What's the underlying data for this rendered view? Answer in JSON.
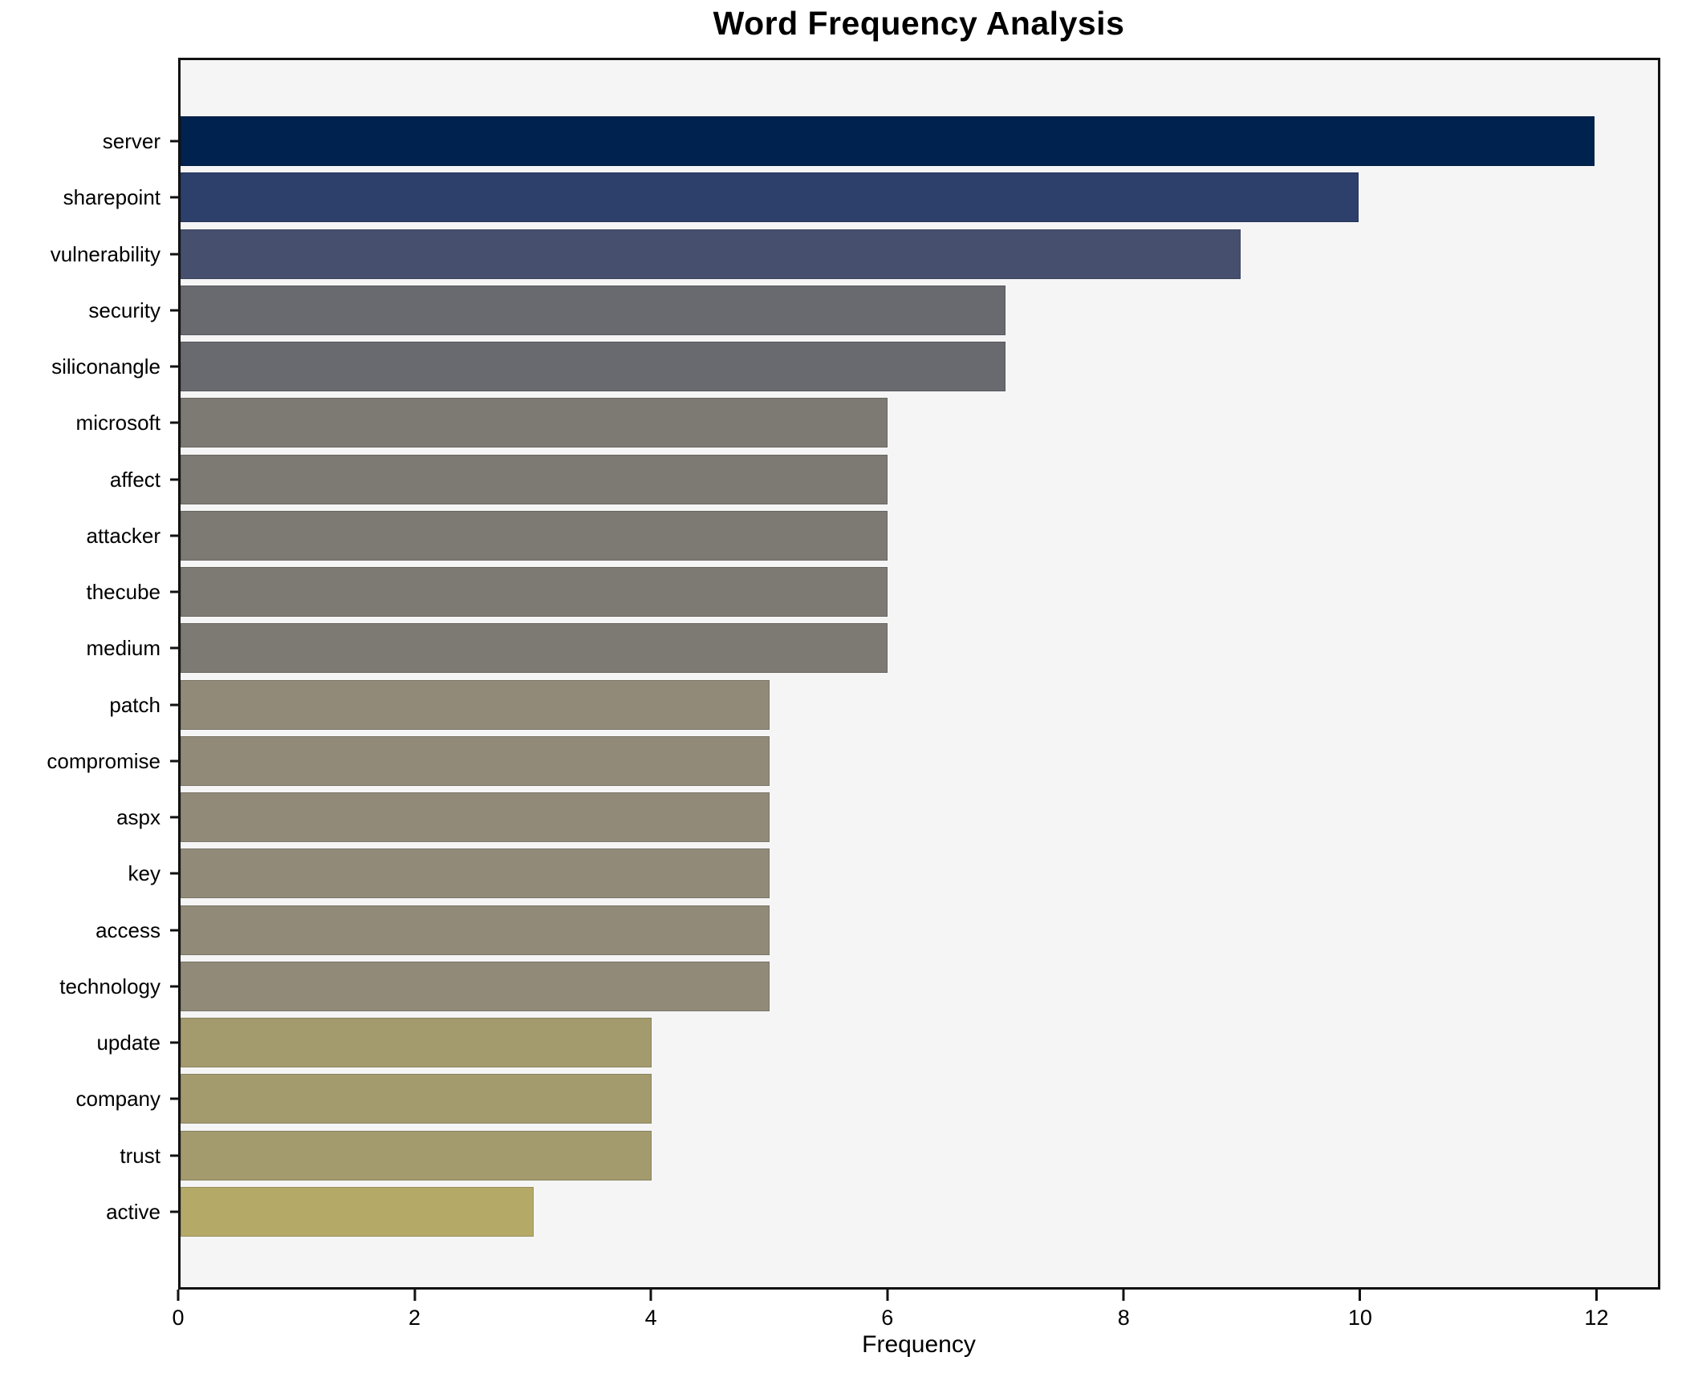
{
  "chart_data": {
    "type": "bar",
    "orientation": "horizontal",
    "title": "Word Frequency Analysis",
    "xlabel": "Frequency",
    "ylabel": "",
    "categories": [
      "server",
      "sharepoint",
      "vulnerability",
      "security",
      "siliconangle",
      "microsoft",
      "affect",
      "attacker",
      "thecube",
      "medium",
      "patch",
      "compromise",
      "aspx",
      "key",
      "access",
      "technology",
      "update",
      "company",
      "trust",
      "active"
    ],
    "values": [
      12,
      10,
      9,
      7,
      7,
      6,
      6,
      6,
      6,
      6,
      5,
      5,
      5,
      5,
      5,
      5,
      4,
      4,
      4,
      3
    ],
    "bar_colors": [
      "#00224e",
      "#2d3f6b",
      "#46506e",
      "#696970",
      "#696970",
      "#7d7a73",
      "#7d7a73",
      "#7d7a73",
      "#7d7a73",
      "#7d7a73",
      "#918a78",
      "#918a78",
      "#918a78",
      "#918a78",
      "#918a78",
      "#918a78",
      "#a39a6e",
      "#a39a6e",
      "#a39a6e",
      "#b5a968"
    ],
    "xticks": [
      0,
      2,
      4,
      6,
      8,
      10,
      12
    ],
    "xlim": [
      0,
      12.54
    ],
    "grid": false,
    "legend": "none",
    "colors": {
      "figure_background": "#ffffff",
      "axes_background": "#f5f5f6",
      "spine": "#121212",
      "text": "#000000"
    }
  }
}
